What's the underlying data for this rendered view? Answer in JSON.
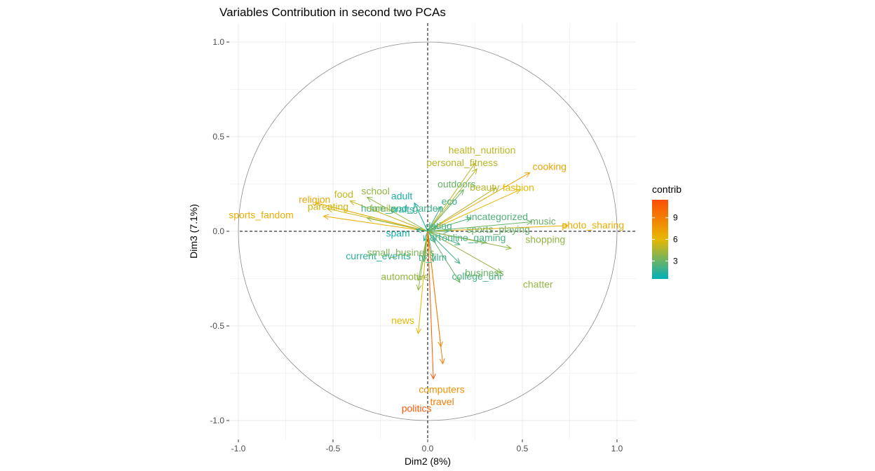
{
  "chart_data": {
    "type": "scatter",
    "subtype": "pca-variable-correlation-circle",
    "title": "Variables Contribution in second two PCAs",
    "xlabel": "Dim2 (8%)",
    "ylabel": "Dim3 (7.1%)",
    "xlim": [
      -1.1,
      1.1
    ],
    "ylim": [
      -1.1,
      1.1
    ],
    "x_ticks": [
      -1.0,
      -0.5,
      0.0,
      0.5,
      1.0
    ],
    "y_ticks": [
      -1.0,
      -0.5,
      0.0,
      0.5,
      1.0
    ],
    "x_tick_labels": [
      "-1.0",
      "-0.5",
      "0.0",
      "0.5",
      "1.0"
    ],
    "y_tick_labels": [
      "-1.0",
      "-0.5",
      "0.0",
      "0.5",
      "1.0"
    ],
    "grid": true,
    "unit_circle": true,
    "legend": {
      "title": "contrib",
      "position": "right",
      "ticks": [
        3,
        6,
        9
      ],
      "tick_labels": [
        "3",
        "6",
        "9"
      ],
      "range": [
        0.5,
        11.5
      ],
      "colors": [
        "#00AFBB",
        "#E7B800",
        "#FC4E07"
      ]
    },
    "variables": [
      {
        "name": "health_nutrition",
        "x": 0.25,
        "y": 0.36,
        "contrib": 5.0
      },
      {
        "name": "cooking",
        "x": 0.54,
        "y": 0.31,
        "contrib": 7.0
      },
      {
        "name": "personal_fitness",
        "x": 0.26,
        "y": 0.33,
        "contrib": 4.8
      },
      {
        "name": "food",
        "x": -0.41,
        "y": 0.16,
        "contrib": 5.2
      },
      {
        "name": "school",
        "x": -0.32,
        "y": 0.18,
        "contrib": 4.0
      },
      {
        "name": "outdoors",
        "x": 0.19,
        "y": 0.22,
        "contrib": 3.0
      },
      {
        "name": "beauty",
        "x": 0.36,
        "y": 0.23,
        "contrib": 4.8
      },
      {
        "name": "fashion",
        "x": 0.49,
        "y": 0.22,
        "contrib": 6.0
      },
      {
        "name": "religion",
        "x": -0.59,
        "y": 0.15,
        "contrib": 6.8
      },
      {
        "name": "adult",
        "x": -0.07,
        "y": 0.15,
        "contrib": 1.2
      },
      {
        "name": "eco",
        "x": 0.07,
        "y": 0.13,
        "contrib": 2.0
      },
      {
        "name": "uncategorized",
        "x": 0.23,
        "y": 0.07,
        "contrib": 2.4
      },
      {
        "name": "parenting",
        "x": -0.53,
        "y": 0.12,
        "contrib": 5.5
      },
      {
        "name": "music",
        "x": 0.55,
        "y": 0.05,
        "contrib": 3.0
      },
      {
        "name": "home_and_garden",
        "x": 0.05,
        "y": 0.03,
        "contrib": 2.0
      },
      {
        "name": "photo_sharing",
        "x": 0.74,
        "y": 0.03,
        "contrib": 6.5
      },
      {
        "name": "sports_fandom",
        "x": -0.55,
        "y": 0.08,
        "contrib": 6.5
      },
      {
        "name": "family",
        "x": -0.32,
        "y": 0.07,
        "contrib": 4.0
      },
      {
        "name": "crafts",
        "x": -0.06,
        "y": 0.01,
        "contrib": 1.2
      },
      {
        "name": "dating",
        "x": 0.11,
        "y": 0.0,
        "contrib": 2.2
      },
      {
        "name": "sports_playing",
        "x": 0.31,
        "y": -0.06,
        "contrib": 3.0
      },
      {
        "name": "art",
        "x": 0.04,
        "y": -0.06,
        "contrib": 1.8
      },
      {
        "name": "online_gaming",
        "x": 0.17,
        "y": -0.07,
        "contrib": 2.2
      },
      {
        "name": "spam",
        "x": -0.02,
        "y": -0.05,
        "contrib": 1.0
      },
      {
        "name": "shopping",
        "x": 0.44,
        "y": -0.09,
        "contrib": 4.0
      },
      {
        "name": "current_events",
        "x": -0.02,
        "y": -0.16,
        "contrib": 1.5
      },
      {
        "name": "tv_film",
        "x": 0.03,
        "y": -0.16,
        "contrib": 2.0
      },
      {
        "name": "college_uni",
        "x": 0.17,
        "y": -0.17,
        "contrib": 2.2
      },
      {
        "name": "small_business",
        "x": -0.05,
        "y": -0.26,
        "contrib": 3.5
      },
      {
        "name": "business",
        "x": 0.17,
        "y": -0.27,
        "contrib": 3.0
      },
      {
        "name": "chatter",
        "x": 0.39,
        "y": -0.22,
        "contrib": 4.0
      },
      {
        "name": "automotive",
        "x": -0.05,
        "y": -0.31,
        "contrib": 4.0
      },
      {
        "name": "news",
        "x": -0.05,
        "y": -0.54,
        "contrib": 6.0
      },
      {
        "name": "computers",
        "x": 0.07,
        "y": -0.61,
        "contrib": 8.0
      },
      {
        "name": "travel",
        "x": 0.08,
        "y": -0.7,
        "contrib": 9.0
      },
      {
        "name": "politics",
        "x": 0.03,
        "y": -0.78,
        "contrib": 11.0
      }
    ]
  }
}
